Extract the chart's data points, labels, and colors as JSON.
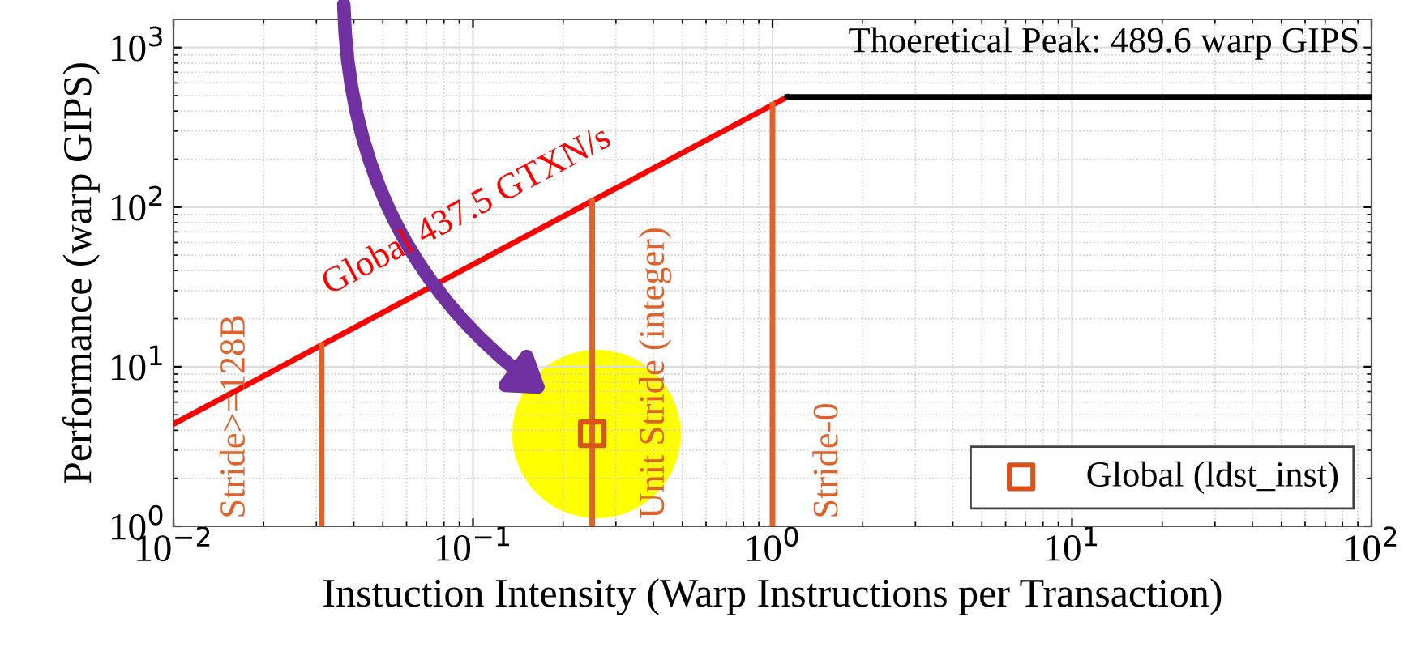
{
  "chart_data": {
    "type": "line",
    "xlabel": "Instuction Intensity (Warp Instructions per Transaction)",
    "ylabel": "Performance (warp GIPS)",
    "xlim": [
      0.01,
      100
    ],
    "ylim": [
      1,
      1500
    ],
    "log": "xy",
    "xticks": [
      {
        "value": 0.01,
        "label": "10$^{−2}$"
      },
      {
        "value": 0.1,
        "label": "10$^{−1}$"
      },
      {
        "value": 1,
        "label": "10$^{0}$"
      },
      {
        "value": 10,
        "label": "10$^{1}$"
      },
      {
        "value": 100,
        "label": "10$^{2}$"
      }
    ],
    "yticks": [
      {
        "value": 1,
        "label": "10$^{0}$"
      },
      {
        "value": 10,
        "label": "10$^{1}$"
      },
      {
        "value": 100,
        "label": "10$^{2}$"
      },
      {
        "value": 1000,
        "label": "10$^{3}$"
      }
    ],
    "grid": true,
    "legend": "bottom right",
    "series": [
      {
        "color": "#ff0000",
        "x": [
          0.01,
          1.119
        ],
        "values": [
          4.375,
          489.6
        ]
      },
      {
        "color": "#000000",
        "x": [
          1.119,
          100
        ],
        "values": [
          489.6,
          489.6
        ]
      },
      {
        "color": "#e0622a",
        "x": [
          0.03125,
          0.03125
        ],
        "values": [
          1,
          13.67
        ]
      },
      {
        "color": "#e0622a",
        "x": [
          0.25,
          0.25
        ],
        "values": [
          1,
          109.4
        ]
      },
      {
        "color": "#e0622a",
        "x": [
          1,
          1
        ],
        "values": [
          1,
          437.5
        ]
      },
      {
        "type": "scatter",
        "name": "Global (ldst_inst)",
        "color": "#d95319",
        "marker": "square",
        "x": [
          0.25
        ],
        "values": [
          3.8
        ]
      }
    ],
    "annotations": [
      "Thoeretical Peak: 489.6 warp GIPS",
      "Global 437.5 GTXN/s",
      "Stride>=128B",
      "Unit Stride (integer)",
      "Stride-0"
    ]
  }
}
